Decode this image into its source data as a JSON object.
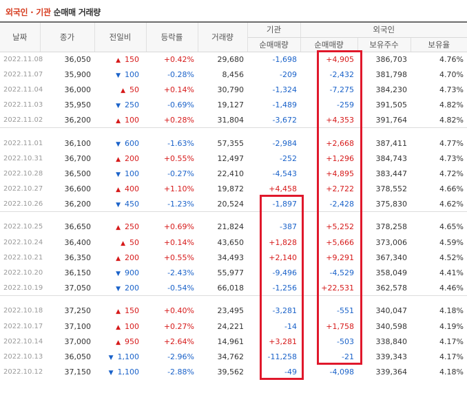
{
  "title": {
    "part_foreign": "외국인",
    "sep": " · ",
    "part_inst": "기관",
    "rest": " 순매매 거래량"
  },
  "headers": {
    "date": "날짜",
    "close": "종가",
    "change": "전일비",
    "rate": "등락률",
    "volume": "거래량",
    "institution": "기관",
    "foreign": "외국인",
    "inst_net": "순매매량",
    "foreign_net": "순매매량",
    "holdings": "보유주수",
    "ratio": "보유율"
  },
  "colors": {
    "up": "#d61a1a",
    "down": "#1a62c9",
    "highlight": "#e0182b",
    "accent_title": "#d63b1e"
  },
  "groups": [
    [
      {
        "date": "2022.11.08",
        "close": "36,050",
        "dir": "up",
        "change": "150",
        "rate": "+0.42%",
        "volume": "29,680",
        "inst": "-1,698",
        "foreign": "+4,905",
        "holdings": "386,703",
        "ratio": "4.76%"
      },
      {
        "date": "2022.11.07",
        "close": "35,900",
        "dir": "down",
        "change": "100",
        "rate": "-0.28%",
        "volume": "8,456",
        "inst": "-209",
        "foreign": "-2,432",
        "holdings": "381,798",
        "ratio": "4.70%"
      },
      {
        "date": "2022.11.04",
        "close": "36,000",
        "dir": "up",
        "change": "50",
        "rate": "+0.14%",
        "volume": "30,790",
        "inst": "-1,324",
        "foreign": "-7,275",
        "holdings": "384,230",
        "ratio": "4.73%"
      },
      {
        "date": "2022.11.03",
        "close": "35,950",
        "dir": "down",
        "change": "250",
        "rate": "-0.69%",
        "volume": "19,127",
        "inst": "-1,489",
        "foreign": "-259",
        "holdings": "391,505",
        "ratio": "4.82%"
      },
      {
        "date": "2022.11.02",
        "close": "36,200",
        "dir": "up",
        "change": "100",
        "rate": "+0.28%",
        "volume": "31,804",
        "inst": "-3,672",
        "foreign": "+4,353",
        "holdings": "391,764",
        "ratio": "4.82%"
      }
    ],
    [
      {
        "date": "2022.11.01",
        "close": "36,100",
        "dir": "down",
        "change": "600",
        "rate": "-1.63%",
        "volume": "57,355",
        "inst": "-2,984",
        "foreign": "+2,668",
        "holdings": "387,411",
        "ratio": "4.77%"
      },
      {
        "date": "2022.10.31",
        "close": "36,700",
        "dir": "up",
        "change": "200",
        "rate": "+0.55%",
        "volume": "12,497",
        "inst": "-252",
        "foreign": "+1,296",
        "holdings": "384,743",
        "ratio": "4.73%"
      },
      {
        "date": "2022.10.28",
        "close": "36,500",
        "dir": "down",
        "change": "100",
        "rate": "-0.27%",
        "volume": "22,410",
        "inst": "-4,543",
        "foreign": "+4,895",
        "holdings": "383,447",
        "ratio": "4.72%"
      },
      {
        "date": "2022.10.27",
        "close": "36,600",
        "dir": "up",
        "change": "400",
        "rate": "+1.10%",
        "volume": "19,872",
        "inst": "+4,458",
        "foreign": "+2,722",
        "holdings": "378,552",
        "ratio": "4.66%"
      },
      {
        "date": "2022.10.26",
        "close": "36,200",
        "dir": "down",
        "change": "450",
        "rate": "-1.23%",
        "volume": "20,524",
        "inst": "-1,897",
        "foreign": "-2,428",
        "holdings": "375,830",
        "ratio": "4.62%"
      }
    ],
    [
      {
        "date": "2022.10.25",
        "close": "36,650",
        "dir": "up",
        "change": "250",
        "rate": "+0.69%",
        "volume": "21,824",
        "inst": "-387",
        "foreign": "+5,252",
        "holdings": "378,258",
        "ratio": "4.65%"
      },
      {
        "date": "2022.10.24",
        "close": "36,400",
        "dir": "up",
        "change": "50",
        "rate": "+0.14%",
        "volume": "43,650",
        "inst": "+1,828",
        "foreign": "+5,666",
        "holdings": "373,006",
        "ratio": "4.59%"
      },
      {
        "date": "2022.10.21",
        "close": "36,350",
        "dir": "up",
        "change": "200",
        "rate": "+0.55%",
        "volume": "34,493",
        "inst": "+2,140",
        "foreign": "+9,291",
        "holdings": "367,340",
        "ratio": "4.52%"
      },
      {
        "date": "2022.10.20",
        "close": "36,150",
        "dir": "down",
        "change": "900",
        "rate": "-2.43%",
        "volume": "55,977",
        "inst": "-9,496",
        "foreign": "-4,529",
        "holdings": "358,049",
        "ratio": "4.41%"
      },
      {
        "date": "2022.10.19",
        "close": "37,050",
        "dir": "down",
        "change": "200",
        "rate": "-0.54%",
        "volume": "66,018",
        "inst": "-1,256",
        "foreign": "+22,531",
        "holdings": "362,578",
        "ratio": "4.46%"
      }
    ],
    [
      {
        "date": "2022.10.18",
        "close": "37,250",
        "dir": "up",
        "change": "150",
        "rate": "+0.40%",
        "volume": "23,495",
        "inst": "-3,281",
        "foreign": "-551",
        "holdings": "340,047",
        "ratio": "4.18%"
      },
      {
        "date": "2022.10.17",
        "close": "37,100",
        "dir": "up",
        "change": "100",
        "rate": "+0.27%",
        "volume": "24,221",
        "inst": "-14",
        "foreign": "+1,758",
        "holdings": "340,598",
        "ratio": "4.19%"
      },
      {
        "date": "2022.10.14",
        "close": "37,000",
        "dir": "up",
        "change": "950",
        "rate": "+2.64%",
        "volume": "14,961",
        "inst": "+3,281",
        "foreign": "-503",
        "holdings": "338,840",
        "ratio": "4.17%"
      },
      {
        "date": "2022.10.13",
        "close": "36,050",
        "dir": "down",
        "change": "1,100",
        "rate": "-2.96%",
        "volume": "34,762",
        "inst": "-11,258",
        "foreign": "-21",
        "holdings": "339,343",
        "ratio": "4.17%"
      },
      {
        "date": "2022.10.12",
        "close": "37,150",
        "dir": "down",
        "change": "1,100",
        "rate": "-2.88%",
        "volume": "39,562",
        "inst": "-49",
        "foreign": "-4,098",
        "holdings": "339,364",
        "ratio": "4.18%"
      }
    ]
  ],
  "icons": {
    "up": "▲",
    "down": "▼"
  }
}
